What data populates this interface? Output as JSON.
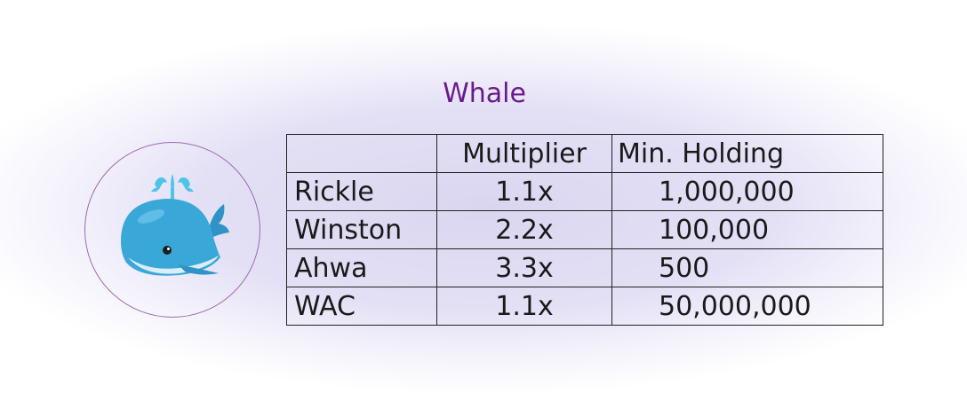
{
  "title": "Whale",
  "avatar_icon": "whale-icon",
  "table": {
    "headers": [
      "",
      "Multiplier",
      "Min. Holding"
    ],
    "rows": [
      {
        "name": "Rickle",
        "multiplier": "1.1x",
        "min_holding": "1,000,000"
      },
      {
        "name": "Winston",
        "multiplier": "2.2x",
        "min_holding": "100,000"
      },
      {
        "name": "Ahwa",
        "multiplier": "3.3x",
        "min_holding": "500"
      },
      {
        "name": "WAC",
        "multiplier": "1.1x",
        "min_holding": "50,000,000"
      }
    ]
  },
  "colors": {
    "title": "#6a1b8a",
    "circle_border": "#9a6ab0",
    "whale_body": "#3aa7d9",
    "background_glow": "#dcd8f0"
  }
}
